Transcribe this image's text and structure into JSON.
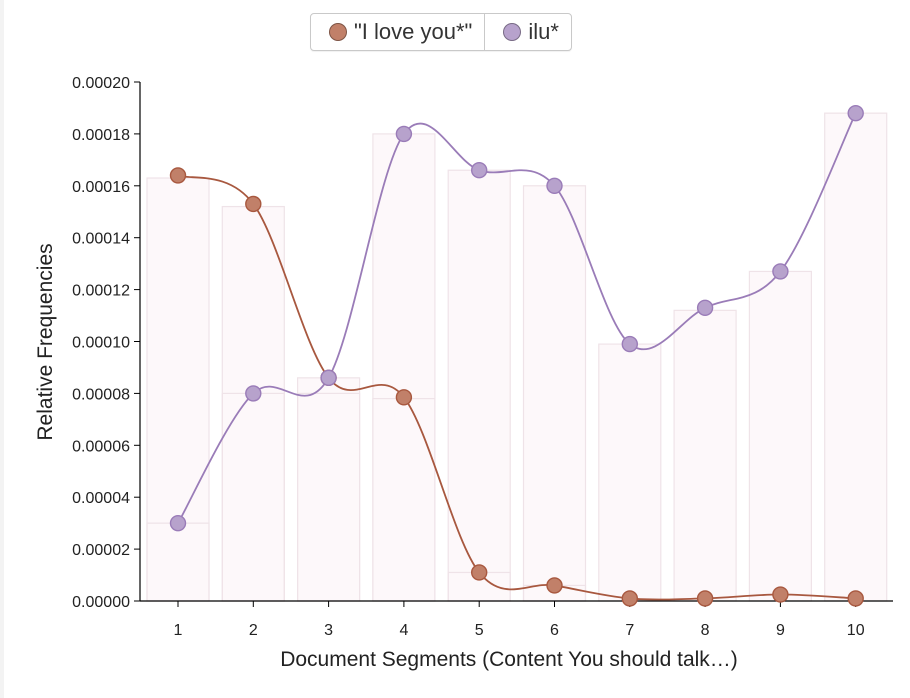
{
  "legend": {
    "items": [
      {
        "label": "\"I love you*\"",
        "color": "#c18069"
      },
      {
        "label": "ilu*",
        "color": "#b7a2cc"
      }
    ]
  },
  "colors": {
    "series1_line": "#a8583f",
    "series2_line": "#9a7cb8",
    "bar_fill": "#fdf8fa",
    "bar_stroke": "#efe3e8",
    "axis": "#000000"
  },
  "chart_data": {
    "type": "line",
    "xlabel": "Document Segments (Content You should talk…)",
    "ylabel": "Relative Frequencies",
    "x": [
      1,
      2,
      3,
      4,
      5,
      6,
      7,
      8,
      9,
      10
    ],
    "ylim": [
      0,
      0.0002
    ],
    "yticks": [
      "0.00000",
      "0.00002",
      "0.00004",
      "0.00006",
      "0.00008",
      "0.00010",
      "0.00012",
      "0.00014",
      "0.00016",
      "0.00018",
      "0.00020"
    ],
    "series": [
      {
        "name": "\"I love you*\"",
        "values": [
          0.000164,
          0.000153,
          8.6e-05,
          7.85e-05,
          1.1e-05,
          6e-06,
          1e-06,
          1e-06,
          2.5e-06,
          1e-06
        ]
      },
      {
        "name": "ilu*",
        "values": [
          3e-05,
          8e-05,
          8.6e-05,
          0.00018,
          0.000166,
          0.00016,
          9.9e-05,
          0.000113,
          0.000127,
          0.000188
        ]
      }
    ],
    "bars": [
      0.000163,
      0.000152,
      8.6e-05,
      0.00018,
      0.000166,
      0.00016,
      9.9e-05,
      0.000112,
      0.000127,
      0.000188
    ],
    "bars_secondary": [
      3e-05,
      8e-05,
      8e-05,
      7.8e-05,
      1.1e-05,
      6e-06,
      0,
      0,
      0,
      0
    ]
  }
}
